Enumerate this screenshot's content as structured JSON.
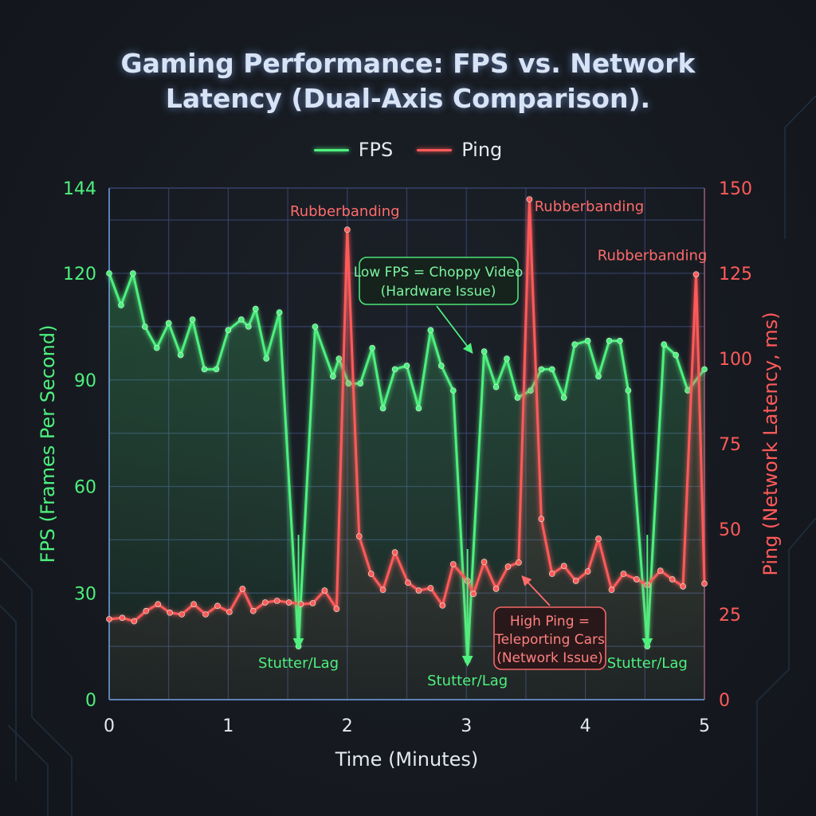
{
  "chart_data": {
    "type": "line",
    "title": "Gaming Performance: FPS vs. Network Latency (Dual-Axis Comparison).",
    "xlabel": "Time (Minutes)",
    "ylabel_left": "FPS (Frames Per Second)",
    "ylabel_right": "Ping (Network Latency, ms)",
    "xlim": [
      0,
      5
    ],
    "ylim_left": [
      0,
      144
    ],
    "ylim_right": [
      0,
      150
    ],
    "x_ticks": [
      "0",
      "1",
      "2",
      "3",
      "4",
      "5"
    ],
    "y_left_ticks": [
      "0",
      "30",
      "60",
      "90",
      "120",
      "144"
    ],
    "y_right_ticks": [
      "0",
      "25",
      "50",
      "75",
      "100",
      "125",
      "150"
    ],
    "grid": true,
    "legend_position": "top-center",
    "series": [
      {
        "name": "FPS",
        "axis": "left",
        "color": "#4ef07e",
        "x": [
          0,
          0.1,
          0.2,
          0.3,
          0.4,
          0.5,
          0.6,
          0.7,
          0.8,
          0.9,
          1.0,
          1.11,
          1.17,
          1.23,
          1.32,
          1.43,
          1.59,
          1.73,
          1.88,
          1.93,
          2.01,
          2.11,
          2.21,
          2.3,
          2.4,
          2.5,
          2.6,
          2.7,
          2.79,
          2.89,
          3.01,
          3.15,
          3.25,
          3.34,
          3.43,
          3.54,
          3.63,
          3.72,
          3.82,
          3.91,
          4.02,
          4.11,
          4.2,
          4.29,
          4.36,
          4.52,
          4.66,
          4.76,
          4.86,
          5
        ],
        "y": [
          120,
          111,
          120,
          105,
          99,
          106,
          97,
          107,
          93,
          93,
          104,
          107,
          105,
          110,
          96,
          109,
          15,
          105,
          91,
          96,
          89,
          89,
          99,
          82,
          93,
          94,
          82,
          104,
          94,
          87,
          11,
          98,
          88,
          96,
          85,
          87,
          93,
          93,
          85,
          100,
          101,
          91,
          101,
          101,
          87,
          15,
          100,
          97,
          87,
          93
        ]
      },
      {
        "name": "Ping",
        "axis": "right",
        "color": "#ff5a5a",
        "x": [
          0,
          0.11,
          0.21,
          0.31,
          0.41,
          0.51,
          0.61,
          0.71,
          0.81,
          0.91,
          1.01,
          1.12,
          1.21,
          1.31,
          1.41,
          1.51,
          1.61,
          1.71,
          1.81,
          1.91,
          2.0,
          2.1,
          2.2,
          2.3,
          2.4,
          2.51,
          2.6,
          2.7,
          2.8,
          2.89,
          3.01,
          3.06,
          3.15,
          3.25,
          3.35,
          3.44,
          3.53,
          3.63,
          3.72,
          3.82,
          3.92,
          4.02,
          4.11,
          4.22,
          4.32,
          4.43,
          4.52,
          4.63,
          4.73,
          4.82,
          4.93,
          5
        ],
        "y": [
          23.6,
          24,
          23,
          26,
          28,
          25.5,
          25,
          28,
          25,
          27.5,
          25.7,
          32.5,
          26,
          28.5,
          29,
          28.5,
          28,
          28.3,
          32,
          26.6,
          137.8,
          47.9,
          36.9,
          32.2,
          43.2,
          34.3,
          32,
          32.7,
          27.6,
          39.7,
          34.8,
          31,
          40.4,
          32.5,
          39,
          40.2,
          146.7,
          53,
          36.9,
          39.2,
          34.8,
          37.6,
          47.2,
          32.2,
          36.9,
          35.3,
          33.6,
          37.8,
          35.3,
          33.2,
          124.7,
          34
        ]
      }
    ],
    "annotations": {
      "rubberbanding": [
        {
          "text": "Rubberbanding",
          "x": 2.0,
          "ping": 137.8
        },
        {
          "text": "Rubberbanding",
          "x": 3.53,
          "ping": 146.7
        },
        {
          "text": "Rubberbanding",
          "x": 4.93,
          "ping": 124.7
        }
      ],
      "stutter": [
        {
          "text": "Stutter/Lag",
          "x": 1.59,
          "fps": 15
        },
        {
          "text": "Stutter/Lag",
          "x": 3.01,
          "fps": 11
        },
        {
          "text": "Stutter/Lag",
          "x": 4.52,
          "fps": 15
        }
      ],
      "low_fps_box": [
        "Low FPS = Choppy Video",
        "(Hardware Issue)"
      ],
      "high_ping_box": [
        "High Ping =",
        "Teleporting Cars",
        "(Network Issue)"
      ]
    }
  }
}
